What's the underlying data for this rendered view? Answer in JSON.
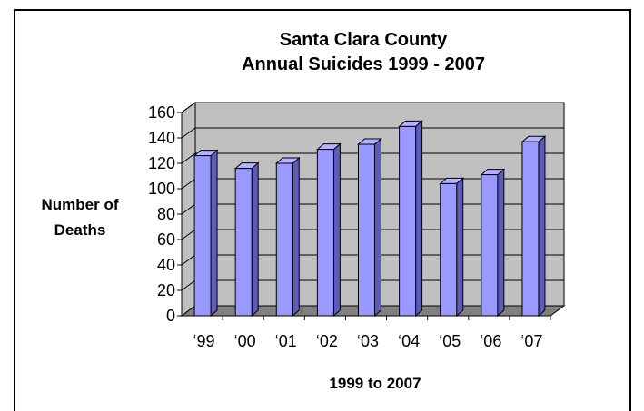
{
  "chart_data": {
    "type": "bar",
    "title_lines": [
      "Santa Clara County",
      "Annual Suicides 1999 - 2007"
    ],
    "ylabel_lines": [
      "Number of",
      "Deaths"
    ],
    "xlabel": "1999 to 2007",
    "categories": [
      "‘99",
      "‘00",
      "‘01",
      "‘02",
      "‘03",
      "‘04",
      "‘05",
      "‘06",
      "‘07"
    ],
    "values": [
      126,
      116,
      120,
      131,
      135,
      149,
      104,
      111,
      137
    ],
    "yticks": [
      0,
      20,
      40,
      60,
      80,
      100,
      120,
      140,
      160
    ],
    "ylim": [
      0,
      160
    ],
    "grid": true,
    "legend": false,
    "colors": {
      "bar_front": "#9999ff",
      "bar_side": "#5c5cb8",
      "bar_top": "#b3b3ff",
      "wall": "#c0c0c0",
      "floor": "#808080"
    }
  }
}
